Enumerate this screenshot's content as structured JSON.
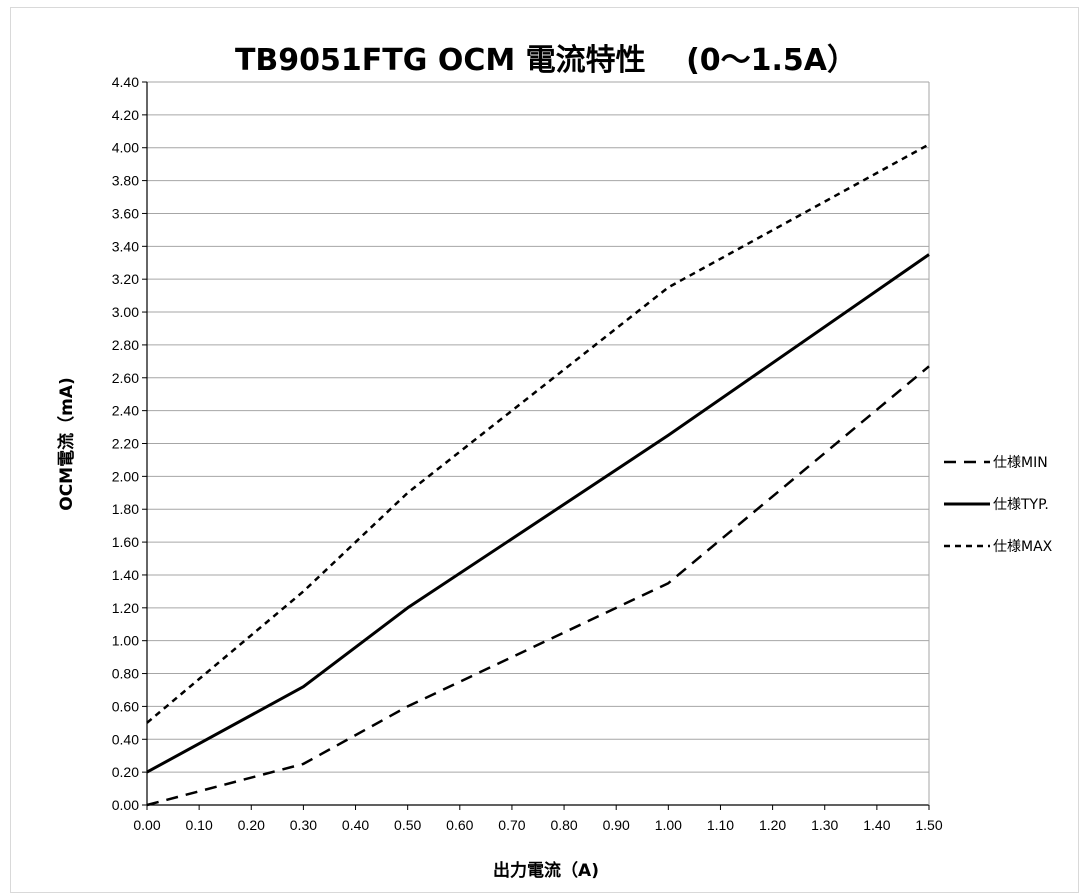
{
  "chart_data": {
    "type": "line",
    "title": "TB9051FTG  OCM  電流特性 　(0～1.5A）",
    "xlabel": "出力電流（A)",
    "ylabel": "OCM電流（mA)",
    "xlim": [
      0,
      1.5
    ],
    "ylim": [
      0,
      4.4
    ],
    "x_ticks": [
      "0.00",
      "0.10",
      "0.20",
      "0.30",
      "0.40",
      "0.50",
      "0.60",
      "0.70",
      "0.80",
      "0.90",
      "1.00",
      "1.10",
      "1.20",
      "1.30",
      "1.40",
      "1.50"
    ],
    "y_ticks": [
      "0.00",
      "0.20",
      "0.40",
      "0.60",
      "0.80",
      "1.00",
      "1.20",
      "1.40",
      "1.60",
      "1.80",
      "2.00",
      "2.20",
      "2.40",
      "2.60",
      "2.80",
      "3.00",
      "3.20",
      "3.40",
      "3.60",
      "3.80",
      "4.00",
      "4.20",
      "4.40"
    ],
    "grid": "horizontal",
    "legend_position": "right",
    "series": [
      {
        "name": "仕様MIN",
        "style": "dashed-long",
        "color": "#000000",
        "x": [
          0,
          0.3,
          0.5,
          1.0,
          1.5
        ],
        "y": [
          0,
          0.25,
          0.6,
          1.35,
          2.67
        ]
      },
      {
        "name": "仕様TYP.",
        "style": "solid",
        "color": "#000000",
        "x": [
          0,
          0.3,
          0.5,
          1.0,
          1.5
        ],
        "y": [
          0.2,
          0.72,
          1.2,
          2.25,
          3.35
        ]
      },
      {
        "name": "仕様MAX",
        "style": "dashed-short",
        "color": "#000000",
        "x": [
          0,
          0.3,
          0.5,
          1.0,
          1.5
        ],
        "y": [
          0.5,
          1.3,
          1.9,
          3.15,
          4.02
        ]
      }
    ]
  }
}
